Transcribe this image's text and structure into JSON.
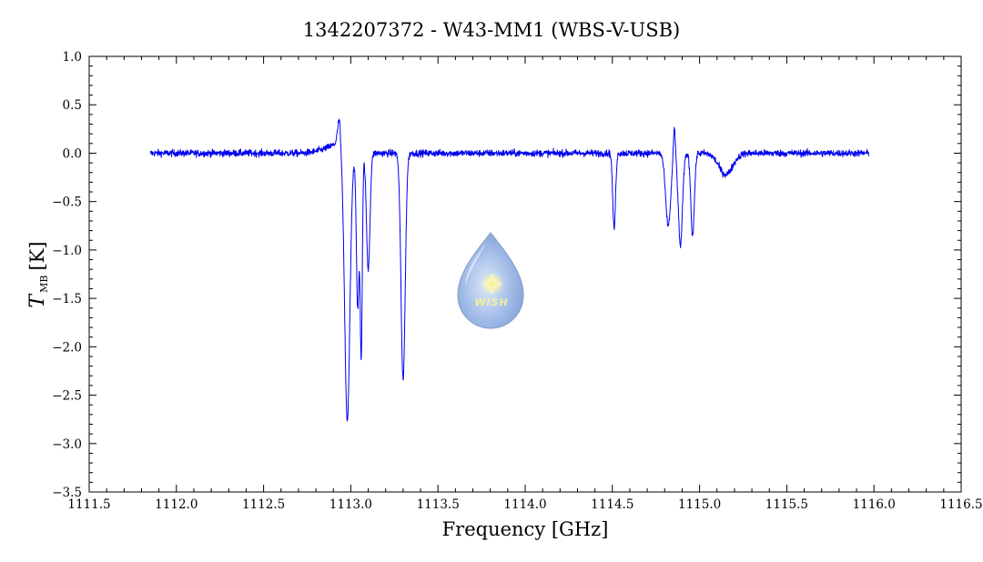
{
  "chart_data": {
    "type": "line",
    "title": "1342207372 - W43-MM1 (WBS-V-USB)",
    "xlabel": "Frequency [GHz]",
    "ylabel": {
      "symbol": "T",
      "subscript": "MB",
      "unit": "[K]"
    },
    "xlim": [
      1111.5,
      1116.5
    ],
    "ylim": [
      -3.5,
      1.0
    ],
    "x_ticks": [
      "1111.5",
      "1112.0",
      "1112.5",
      "1113.0",
      "1113.5",
      "1114.0",
      "1114.5",
      "1115.0",
      "1115.5",
      "1116.0",
      "1116.5"
    ],
    "y_ticks": [
      "1.0",
      "0.5",
      "0.0",
      "-0.5",
      "-1.0",
      "-1.5",
      "-2.0",
      "-2.5",
      "-3.0",
      "-3.5"
    ],
    "grid": false,
    "series": [
      {
        "color": "#0000ee",
        "x_range": [
          1111.85,
          1115.97
        ],
        "baseline_noise_K": 0.035,
        "features": [
          {
            "center": 1112.935,
            "depth": -0.25,
            "width": 0.01,
            "note": "emission peak"
          },
          {
            "center": 1112.98,
            "depth": 2.75,
            "width": 0.015
          },
          {
            "center": 1113.04,
            "depth": 1.6,
            "width": 0.008
          },
          {
            "center": 1113.06,
            "depth": 2.05,
            "width": 0.006
          },
          {
            "center": 1113.1,
            "depth": 1.2,
            "width": 0.01
          },
          {
            "center": 1113.3,
            "depth": 2.35,
            "width": 0.012
          },
          {
            "center": 1114.51,
            "depth": 0.78,
            "width": 0.008
          },
          {
            "center": 1114.855,
            "depth": -0.3,
            "width": 0.006,
            "note": "emission peak"
          },
          {
            "center": 1114.82,
            "depth": 0.75,
            "width": 0.015
          },
          {
            "center": 1114.89,
            "depth": 0.95,
            "width": 0.012
          },
          {
            "center": 1114.96,
            "depth": 0.85,
            "width": 0.01
          },
          {
            "center": 1115.15,
            "depth": 0.22,
            "width": 0.04
          }
        ]
      }
    ]
  },
  "watermark": {
    "text": "WISH",
    "color": "#a9c4ea"
  }
}
